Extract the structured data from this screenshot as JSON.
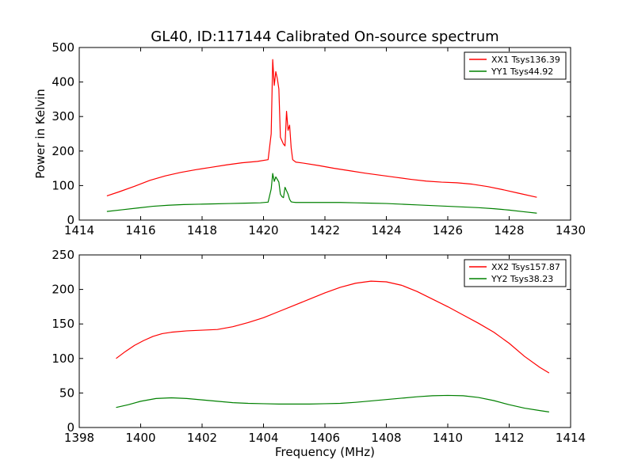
{
  "title": "GL40, ID:117144 Calibrated On-source spectrum",
  "chart_data": [
    {
      "type": "line",
      "title": "GL40, ID:117144 Calibrated On-source spectrum",
      "xlabel": "",
      "ylabel": "Power in Kelvin",
      "xlim": [
        1414,
        1430
      ],
      "ylim": [
        0,
        500
      ],
      "xticks": [
        "1414",
        "1416",
        "1418",
        "1420",
        "1422",
        "1424",
        "1426",
        "1428",
        "1430"
      ],
      "yticks": [
        "0",
        "100",
        "200",
        "300",
        "400",
        "500"
      ],
      "grid": false,
      "legend_position": "top-right",
      "series": [
        {
          "name": "XX1 Tsys136.39",
          "color": "#ff0000",
          "x": [
            1414.9,
            1415.3,
            1415.8,
            1416.3,
            1416.8,
            1417.3,
            1417.8,
            1418.3,
            1418.8,
            1419.3,
            1419.8,
            1420.15,
            1420.25,
            1420.3,
            1420.35,
            1420.4,
            1420.45,
            1420.5,
            1420.55,
            1420.6,
            1420.65,
            1420.7,
            1420.75,
            1420.8,
            1420.85,
            1420.9,
            1420.95,
            1421.05,
            1421.3,
            1421.8,
            1422.3,
            1422.8,
            1423.3,
            1423.8,
            1424.3,
            1424.8,
            1425.3,
            1425.8,
            1426.3,
            1426.8,
            1427.3,
            1427.8,
            1428.3,
            1428.9
          ],
          "values": [
            70,
            82,
            98,
            115,
            128,
            138,
            146,
            153,
            160,
            166,
            170,
            175,
            250,
            465,
            390,
            430,
            410,
            380,
            240,
            230,
            220,
            215,
            315,
            260,
            275,
            210,
            175,
            168,
            165,
            158,
            150,
            143,
            136,
            130,
            124,
            118,
            113,
            110,
            108,
            104,
            97,
            88,
            78,
            66
          ]
        },
        {
          "name": "YY1 Tsys44.92",
          "color": "#008000",
          "x": [
            1414.9,
            1415.4,
            1415.9,
            1416.4,
            1416.9,
            1417.4,
            1417.9,
            1418.4,
            1418.9,
            1419.4,
            1419.9,
            1420.15,
            1420.25,
            1420.3,
            1420.35,
            1420.4,
            1420.45,
            1420.5,
            1420.55,
            1420.6,
            1420.65,
            1420.7,
            1420.75,
            1420.8,
            1420.85,
            1420.9,
            1420.95,
            1421.05,
            1421.5,
            1422.0,
            1422.5,
            1423.0,
            1423.5,
            1424.0,
            1424.5,
            1425.0,
            1425.5,
            1426.0,
            1426.5,
            1427.0,
            1427.5,
            1428.0,
            1428.5,
            1428.9
          ],
          "values": [
            25,
            30,
            35,
            40,
            43,
            45,
            46,
            47,
            48,
            49,
            50,
            52,
            90,
            135,
            112,
            125,
            118,
            110,
            75,
            68,
            65,
            95,
            85,
            75,
            60,
            53,
            52,
            51,
            51,
            51,
            51,
            50,
            49,
            48,
            46,
            44,
            42,
            40,
            38,
            36,
            33,
            29,
            24,
            20
          ]
        }
      ]
    },
    {
      "type": "line",
      "title": "",
      "xlabel": "Frequency (MHz)",
      "ylabel": "",
      "xlim": [
        1398,
        1414
      ],
      "ylim": [
        0,
        250
      ],
      "xticks": [
        "1398",
        "1400",
        "1402",
        "1404",
        "1406",
        "1408",
        "1410",
        "1412",
        "1414"
      ],
      "yticks": [
        "0",
        "50",
        "100",
        "150",
        "200",
        "250"
      ],
      "grid": false,
      "legend_position": "top-right",
      "series": [
        {
          "name": "XX2 Tsys157.87",
          "color": "#ff0000",
          "x": [
            1399.2,
            1399.5,
            1399.8,
            1400.1,
            1400.4,
            1400.7,
            1401.0,
            1401.5,
            1402.0,
            1402.5,
            1403.0,
            1403.5,
            1404.0,
            1404.5,
            1405.0,
            1405.5,
            1406.0,
            1406.5,
            1407.0,
            1407.5,
            1408.0,
            1408.5,
            1409.0,
            1409.5,
            1410.0,
            1410.5,
            1411.0,
            1411.5,
            1412.0,
            1412.5,
            1413.0,
            1413.3
          ],
          "values": [
            100,
            110,
            119,
            126,
            132,
            136,
            138,
            140,
            141,
            142,
            146,
            152,
            159,
            168,
            177,
            186,
            195,
            203,
            209,
            212,
            211,
            206,
            197,
            186,
            175,
            163,
            151,
            138,
            122,
            103,
            87,
            79
          ]
        },
        {
          "name": "YY2 Tsys38.23",
          "color": "#008000",
          "x": [
            1399.2,
            1399.6,
            1400.0,
            1400.5,
            1401.0,
            1401.5,
            1402.0,
            1402.5,
            1403.0,
            1403.5,
            1404.0,
            1404.5,
            1405.0,
            1405.5,
            1406.0,
            1406.5,
            1407.0,
            1407.5,
            1408.0,
            1408.5,
            1409.0,
            1409.5,
            1410.0,
            1410.5,
            1411.0,
            1411.5,
            1412.0,
            1412.5,
            1413.0,
            1413.3
          ],
          "values": [
            29,
            33,
            38,
            42,
            43,
            42,
            40,
            38,
            36,
            35,
            34.5,
            34,
            34,
            34,
            34.5,
            35,
            36.5,
            38.5,
            40.5,
            42.5,
            44.5,
            46,
            46.5,
            46,
            43.5,
            39,
            33,
            28,
            24.5,
            22.5
          ]
        }
      ]
    }
  ]
}
